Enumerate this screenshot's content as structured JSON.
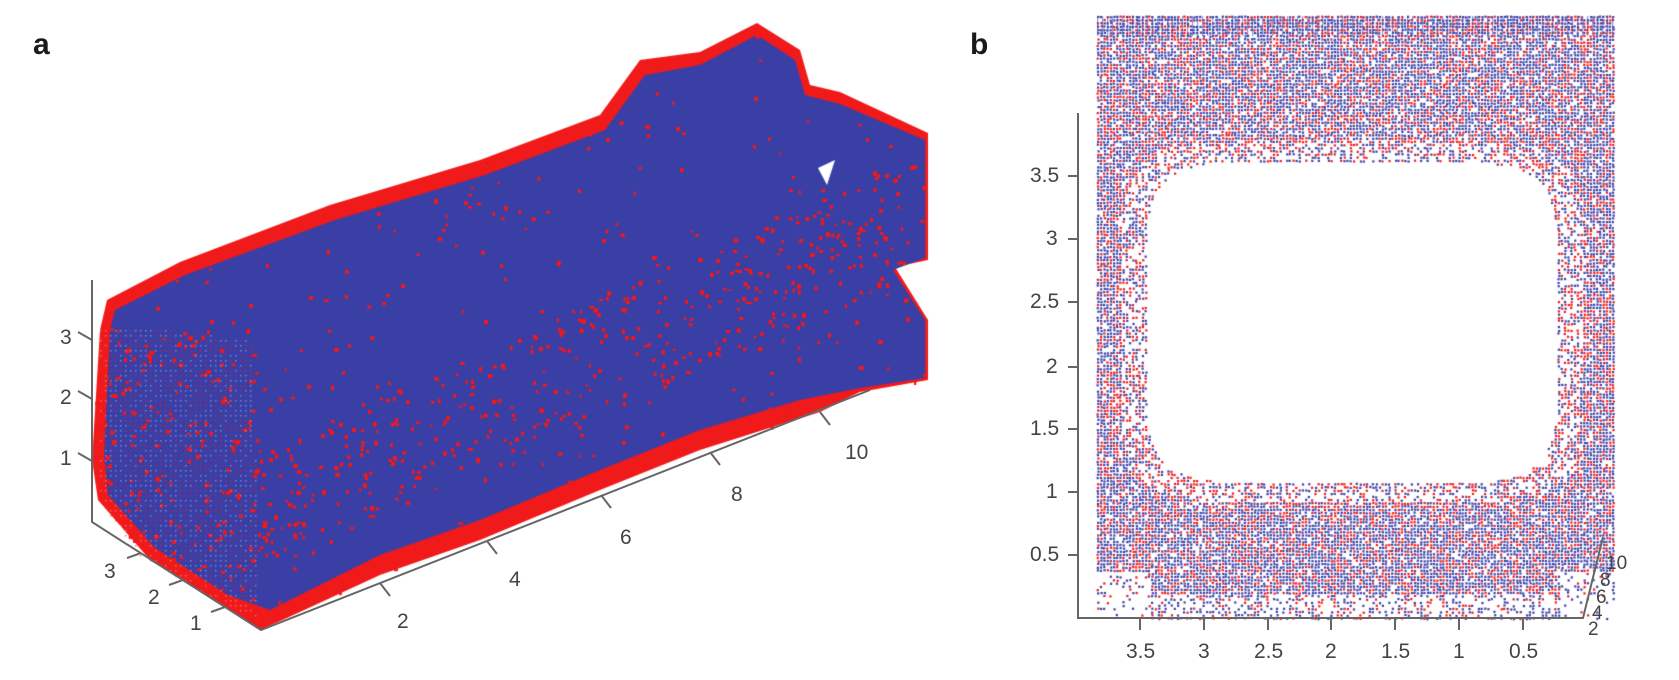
{
  "panels": {
    "a": {
      "label": "a"
    },
    "b": {
      "label": "b"
    }
  },
  "colors": {
    "blue": "#3a3fa6",
    "red": "#f01a1a",
    "axis": "#666666",
    "tick_text": "#444444"
  },
  "chart_data": [
    {
      "panel": "a",
      "type": "scatter",
      "title": "",
      "subtitle": "3D point cloud (isometric view)",
      "series": [
        {
          "name": "blue points",
          "color": "#3a3fa6"
        },
        {
          "name": "red points",
          "color": "#f01a1a"
        }
      ],
      "axes": {
        "x": {
          "label": "",
          "ticks": [
            "2",
            "4",
            "6",
            "8",
            "10"
          ],
          "range": [
            0,
            11
          ]
        },
        "y": {
          "label": "",
          "ticks": [
            "1",
            "2",
            "3"
          ],
          "range": [
            0,
            4
          ]
        },
        "z": {
          "label": "",
          "ticks": [
            "1",
            "2",
            "3"
          ],
          "range": [
            0,
            4
          ]
        }
      },
      "grid": false,
      "legend": "none"
    },
    {
      "panel": "b",
      "type": "scatter",
      "title": "",
      "subtitle": "3D point cloud viewed along length axis (cross-section ring)",
      "series": [
        {
          "name": "blue points",
          "color": "#3a3fa6"
        },
        {
          "name": "red points",
          "color": "#f01a1a"
        }
      ],
      "axes": {
        "x": {
          "label": "",
          "ticks": [
            "3.5",
            "3",
            "2.5",
            "2",
            "1.5",
            "1",
            "0.5"
          ],
          "range": [
            4,
            0
          ],
          "reversed": true
        },
        "y": {
          "label": "",
          "ticks": [
            "0.5",
            "1",
            "1.5",
            "2",
            "2.5",
            "3",
            "3.5"
          ],
          "range": [
            0,
            4
          ]
        },
        "z": {
          "label": "",
          "ticks": [
            "2",
            "4",
            "6",
            "8",
            "10"
          ],
          "range": [
            0,
            11
          ]
        }
      },
      "inner_hole_approx": {
        "x": [
          0.4,
          3.6
        ],
        "y": [
          0.95,
          3.8
        ]
      },
      "grid": false,
      "legend": "none"
    }
  ],
  "ticks": {
    "a_z": [
      "3",
      "2",
      "1"
    ],
    "a_y": [
      "3",
      "2",
      "1"
    ],
    "a_x": [
      "2",
      "4",
      "6",
      "8",
      "10"
    ],
    "b_y": [
      "3.5",
      "3",
      "2.5",
      "2",
      "1.5",
      "1",
      "0.5"
    ],
    "b_x": [
      "3.5",
      "3",
      "2.5",
      "2",
      "1.5",
      "1",
      "0.5"
    ],
    "b_z": [
      "10",
      "8",
      "6",
      "4",
      "2"
    ]
  }
}
